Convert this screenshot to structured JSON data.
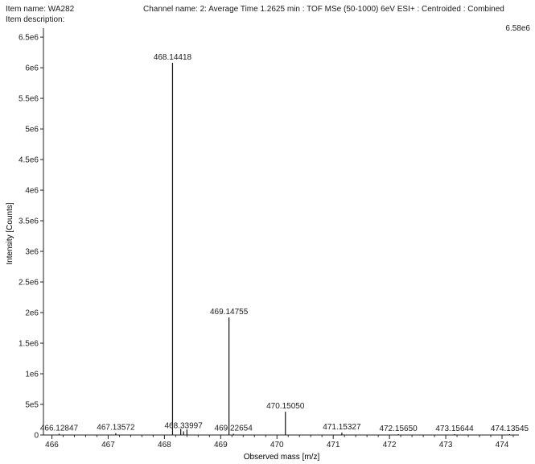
{
  "header": {
    "item_name": "Item name: WA282",
    "item_description": "Item description:",
    "channel": "Channel name: 2: Average Time 1.2625 min : TOF MSe (50-1000) 6eV ESI+ : Centroided : Combined",
    "max_intensity": "6.58e6"
  },
  "chart_data": {
    "type": "bar",
    "title": "",
    "xlabel": "Observed mass [m/z]",
    "ylabel": "Intensity [Counts]",
    "xlim": [
      465.85,
      474.3
    ],
    "ylim": [
      0,
      6580000.0
    ],
    "x_ticks": [
      466,
      467,
      468,
      469,
      470,
      471,
      472,
      473,
      474
    ],
    "x_tick_labels": [
      "466",
      "467",
      "468",
      "469",
      "470",
      "471",
      "472",
      "473",
      "474"
    ],
    "y_ticks": [
      0,
      500000,
      1000000,
      1500000,
      2000000,
      2500000,
      3000000,
      3500000,
      4000000,
      4500000,
      5000000,
      5500000,
      6000000,
      6500000
    ],
    "y_tick_labels": [
      "0",
      "5e5",
      "1e6",
      "1.5e6",
      "2e6",
      "2.5e6",
      "3e6",
      "3.5e6",
      "4e6",
      "4.5e6",
      "5e6",
      "5.5e6",
      "6e6",
      "6.5e6"
    ],
    "peaks": [
      {
        "mz": 466.12847,
        "intensity": 20000,
        "label": "466.12847"
      },
      {
        "mz": 467.13572,
        "intensity": 30000,
        "label": "467.13572"
      },
      {
        "mz": 468.14418,
        "intensity": 6080000,
        "label": "468.14418"
      },
      {
        "mz": 468.29,
        "intensity": 100000,
        "label": ""
      },
      {
        "mz": 468.33997,
        "intensity": 60000,
        "label": "468.33997"
      },
      {
        "mz": 468.4,
        "intensity": 90000,
        "label": ""
      },
      {
        "mz": 469.14755,
        "intensity": 1920000,
        "label": "469.14755"
      },
      {
        "mz": 469.22654,
        "intensity": 20000,
        "label": "469.22654"
      },
      {
        "mz": 470.1505,
        "intensity": 380000,
        "label": "470.15050"
      },
      {
        "mz": 471.15327,
        "intensity": 40000,
        "label": "471.15327"
      },
      {
        "mz": 472.1565,
        "intensity": 10000,
        "label": "472.15650"
      },
      {
        "mz": 473.15644,
        "intensity": 10000,
        "label": "473.15644"
      },
      {
        "mz": 474.13545,
        "intensity": 10000,
        "label": "474.13545"
      }
    ]
  }
}
